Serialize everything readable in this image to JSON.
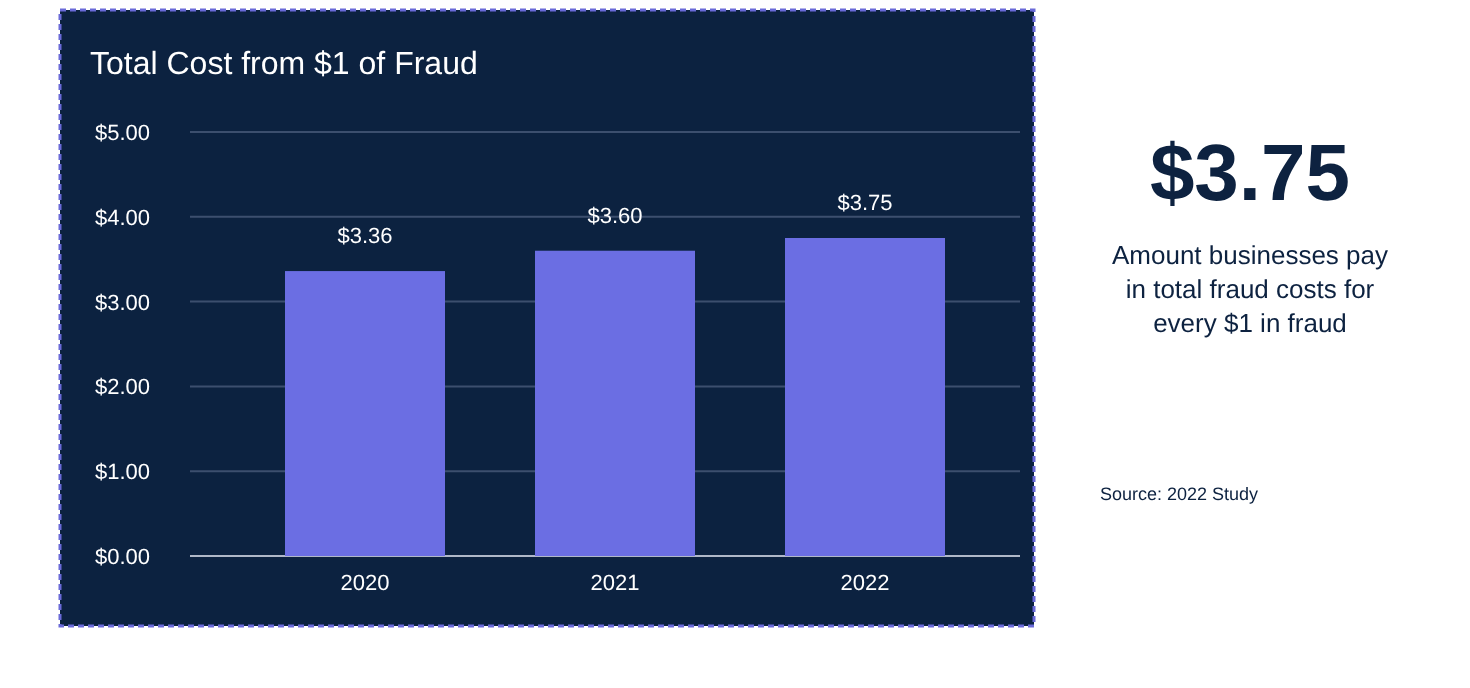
{
  "chart_data": {
    "type": "bar",
    "title": "Total Cost from $1 of Fraud",
    "categories": [
      "2020",
      "2021",
      "2022"
    ],
    "values": [
      3.36,
      3.6,
      3.75
    ],
    "color": "#6b6ee3",
    "ylim": [
      0,
      5
    ],
    "yticks": [
      {
        "value": 0,
        "label": "$0.00"
      },
      {
        "value": 1,
        "label": "$1.00"
      },
      {
        "value": 2,
        "label": "$2.00"
      },
      {
        "value": 3,
        "label": "$3.00"
      },
      {
        "value": 4,
        "label": "$4.00"
      },
      {
        "value": 5,
        "label": "$5.00"
      }
    ],
    "grid": "y",
    "data_labels": true,
    "value_labels": [
      "$3.36",
      "$3.60",
      "$3.75"
    ],
    "annotations": [
      "$3.75",
      "Amount businesses pay",
      "in total fraud costs for",
      "every $1 in fraud",
      "Source: 2022 Study"
    ]
  }
}
